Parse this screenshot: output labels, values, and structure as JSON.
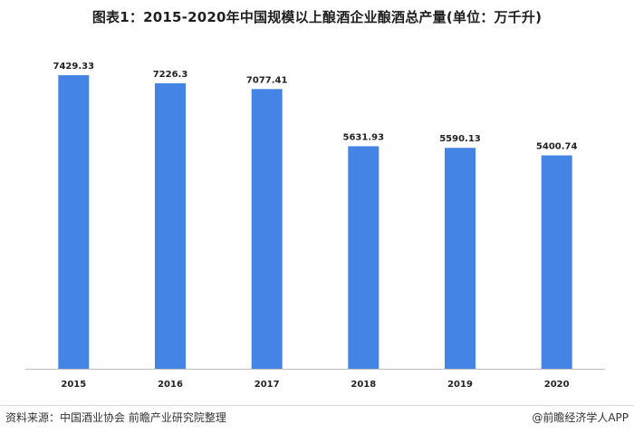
{
  "title": "图表1：2015-2020年中国规模以上酿酒企业酿酒总产量(单位：万千升)",
  "footer": {
    "source": "资料来源：中国酒业协会 前瞻产业研究院整理",
    "brand": "@前瞻经济学人APP"
  },
  "colors": {
    "bar": "#4384e4"
  },
  "chart_data": {
    "type": "bar",
    "title": "图表1：2015-2020年中国规模以上酿酒企业酿酒总产量(单位：万千升)",
    "categories": [
      "2015",
      "2016",
      "2017",
      "2018",
      "2019",
      "2020"
    ],
    "values": [
      7429.33,
      7226.3,
      7077.41,
      5631.93,
      5590.13,
      5400.74
    ],
    "labels": [
      "7429.33",
      "7226.3",
      "7077.41",
      "5631.93",
      "5590.13",
      "5400.74"
    ],
    "ylim": [
      0,
      8000
    ],
    "grid": false,
    "legend": "none"
  }
}
